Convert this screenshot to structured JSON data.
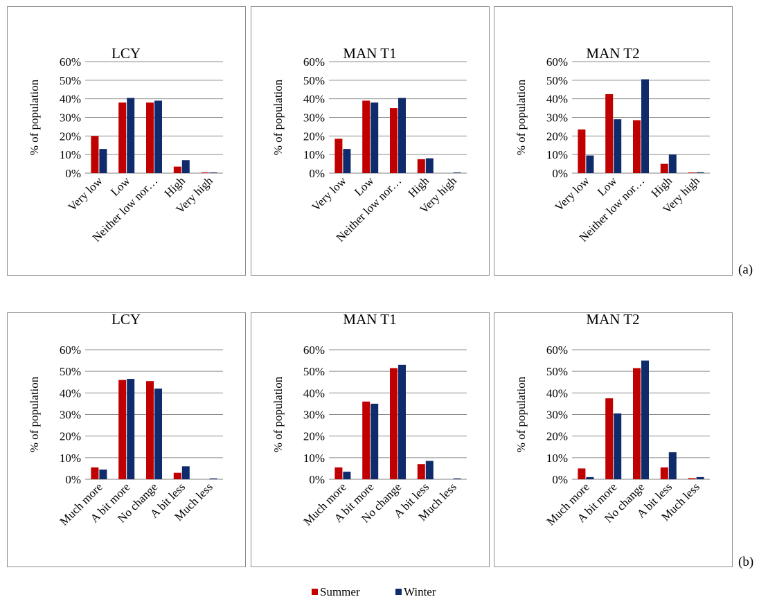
{
  "colors": {
    "summer": "#C00000",
    "winter": "#0F2B6B",
    "grid": "#8C8C8C",
    "border": "#8C8C8C"
  },
  "ylabel": "% of population",
  "legend": {
    "summer": "Summer",
    "winter": "Winter"
  },
  "row_labels": [
    "(a)",
    "(b)"
  ],
  "chart_data": [
    {
      "type": "bar",
      "title": "LCY",
      "row": 0,
      "categories": [
        "Very low",
        "Low",
        "Neither low nor…",
        "High",
        "Very high"
      ],
      "series": [
        {
          "name": "Summer",
          "values": [
            20,
            38,
            38,
            3.5,
            0.2
          ]
        },
        {
          "name": "Winter",
          "values": [
            13,
            40.5,
            39,
            7,
            0.2
          ]
        }
      ],
      "ylim": [
        0,
        60
      ],
      "yticks": [
        "0%",
        "10%",
        "20%",
        "30%",
        "40%",
        "50%",
        "60%"
      ],
      "ylabel": "% of population",
      "grid": true
    },
    {
      "type": "bar",
      "title": "MAN T1",
      "row": 0,
      "categories": [
        "Very low",
        "Low",
        "Neither low nor…",
        "High",
        "Very high"
      ],
      "series": [
        {
          "name": "Summer",
          "values": [
            18.5,
            39,
            35,
            7.5,
            0
          ]
        },
        {
          "name": "Winter",
          "values": [
            13,
            38,
            40.5,
            8,
            0.3
          ]
        }
      ],
      "ylim": [
        0,
        60
      ],
      "yticks": [
        "0%",
        "10%",
        "20%",
        "30%",
        "40%",
        "50%",
        "60%"
      ],
      "ylabel": "% of population",
      "grid": true
    },
    {
      "type": "bar",
      "title": "MAN T2",
      "row": 0,
      "categories": [
        "Very low",
        "Low",
        "Neither low nor…",
        "High",
        "Very high"
      ],
      "series": [
        {
          "name": "Summer",
          "values": [
            23.5,
            42.5,
            28.5,
            5,
            0.3
          ]
        },
        {
          "name": "Winter",
          "values": [
            9.5,
            29,
            50.5,
            10,
            0.5
          ]
        }
      ],
      "ylim": [
        0,
        60
      ],
      "yticks": [
        "0%",
        "10%",
        "20%",
        "30%",
        "40%",
        "50%",
        "60%"
      ],
      "ylabel": "% of population",
      "grid": true
    },
    {
      "type": "bar",
      "title": "LCY",
      "row": 1,
      "categories": [
        "Much more",
        "A bit more",
        "No change",
        "A bit less",
        "Much less"
      ],
      "series": [
        {
          "name": "Summer",
          "values": [
            5.5,
            46,
            45.5,
            3,
            0
          ]
        },
        {
          "name": "Winter",
          "values": [
            4.5,
            46.5,
            42,
            6,
            0.4
          ]
        }
      ],
      "ylim": [
        0,
        60
      ],
      "yticks": [
        "0%",
        "10%",
        "20%",
        "30%",
        "40%",
        "50%",
        "60%"
      ],
      "ylabel": "% of population",
      "grid": true
    },
    {
      "type": "bar",
      "title": "MAN T1",
      "row": 1,
      "categories": [
        "Much more",
        "A bit more",
        "No change",
        "A bit less",
        "Much less"
      ],
      "series": [
        {
          "name": "Summer",
          "values": [
            5.5,
            36,
            51.5,
            7,
            0
          ]
        },
        {
          "name": "Winter",
          "values": [
            3.5,
            35,
            53,
            8.5,
            0.4
          ]
        }
      ],
      "ylim": [
        0,
        60
      ],
      "yticks": [
        "0%",
        "10%",
        "20%",
        "30%",
        "40%",
        "50%",
        "60%"
      ],
      "ylabel": "% of population",
      "grid": true
    },
    {
      "type": "bar",
      "title": "MAN T2",
      "row": 1,
      "categories": [
        "Much more",
        "A bit more",
        "No change",
        "A bit less",
        "Much less"
      ],
      "series": [
        {
          "name": "Summer",
          "values": [
            5,
            37.5,
            51.5,
            5.5,
            0.5
          ]
        },
        {
          "name": "Winter",
          "values": [
            1,
            30.5,
            55,
            12.5,
            1
          ]
        }
      ],
      "ylim": [
        0,
        60
      ],
      "yticks": [
        "0%",
        "10%",
        "20%",
        "30%",
        "40%",
        "50%",
        "60%"
      ],
      "ylabel": "% of population",
      "grid": true
    }
  ]
}
